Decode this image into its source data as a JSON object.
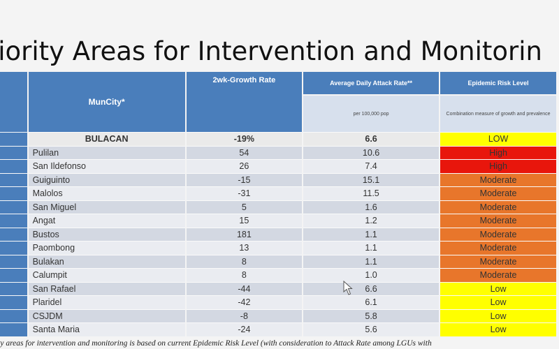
{
  "title": "riority Areas for Intervention and Monitorin",
  "headers": {
    "muncity": "MunCity*",
    "growth": "2wk-Growth Rate",
    "attack": "Average Daily Attack Rate**",
    "attack_sub": "per 100,000 pop",
    "risk": "Epidemic Risk Level",
    "risk_sub": "Combination measure of growth and prevalence"
  },
  "rows": [
    {
      "muncity": "BULACAN",
      "growth": "-19%",
      "attack": "6.6",
      "risk": "LOW",
      "risk_color": "#ffff00"
    },
    {
      "muncity": "Pulilan",
      "growth": "54",
      "attack": "10.6",
      "risk": "High",
      "risk_color": "#e8160c"
    },
    {
      "muncity": "San Ildefonso",
      "growth": "26",
      "attack": "7.4",
      "risk": "High",
      "risk_color": "#e8160c"
    },
    {
      "muncity": "Guiguinto",
      "growth": "-15",
      "attack": "15.1",
      "risk": "Moderate",
      "risk_color": "#e8762b"
    },
    {
      "muncity": "Malolos",
      "growth": "-31",
      "attack": "11.5",
      "risk": "Moderate",
      "risk_color": "#e8762b"
    },
    {
      "muncity": "San Miguel",
      "growth": "5",
      "attack": "1.6",
      "risk": "Moderate",
      "risk_color": "#e8762b"
    },
    {
      "muncity": "Angat",
      "growth": "15",
      "attack": "1.2",
      "risk": "Moderate",
      "risk_color": "#e8762b"
    },
    {
      "muncity": "Bustos",
      "growth": "181",
      "attack": "1.1",
      "risk": "Moderate",
      "risk_color": "#e8762b"
    },
    {
      "muncity": "Paombong",
      "growth": "13",
      "attack": "1.1",
      "risk": "Moderate",
      "risk_color": "#e8762b"
    },
    {
      "muncity": "Bulakan",
      "growth": "8",
      "attack": "1.1",
      "risk": "Moderate",
      "risk_color": "#e8762b"
    },
    {
      "muncity": "Calumpit",
      "growth": "8",
      "attack": "1.0",
      "risk": "Moderate",
      "risk_color": "#e8762b"
    },
    {
      "muncity": "San Rafael",
      "growth": "-44",
      "attack": "6.6",
      "risk": "Low",
      "risk_color": "#ffff00"
    },
    {
      "muncity": "Plaridel",
      "growth": "-42",
      "attack": "6.1",
      "risk": "Low",
      "risk_color": "#ffff00"
    },
    {
      "muncity": "CSJDM",
      "growth": "-8",
      "attack": "5.8",
      "risk": "Low",
      "risk_color": "#ffff00"
    },
    {
      "muncity": "Santa Maria",
      "growth": "-24",
      "attack": "5.6",
      "risk": "Low",
      "risk_color": "#ffff00"
    }
  ],
  "footnote": "ity areas for intervention and monitoring is based on current Epidemic Risk Level (with consideration to Attack Rate among LGUs with",
  "cursor_icon": "mouse-pointer-icon"
}
